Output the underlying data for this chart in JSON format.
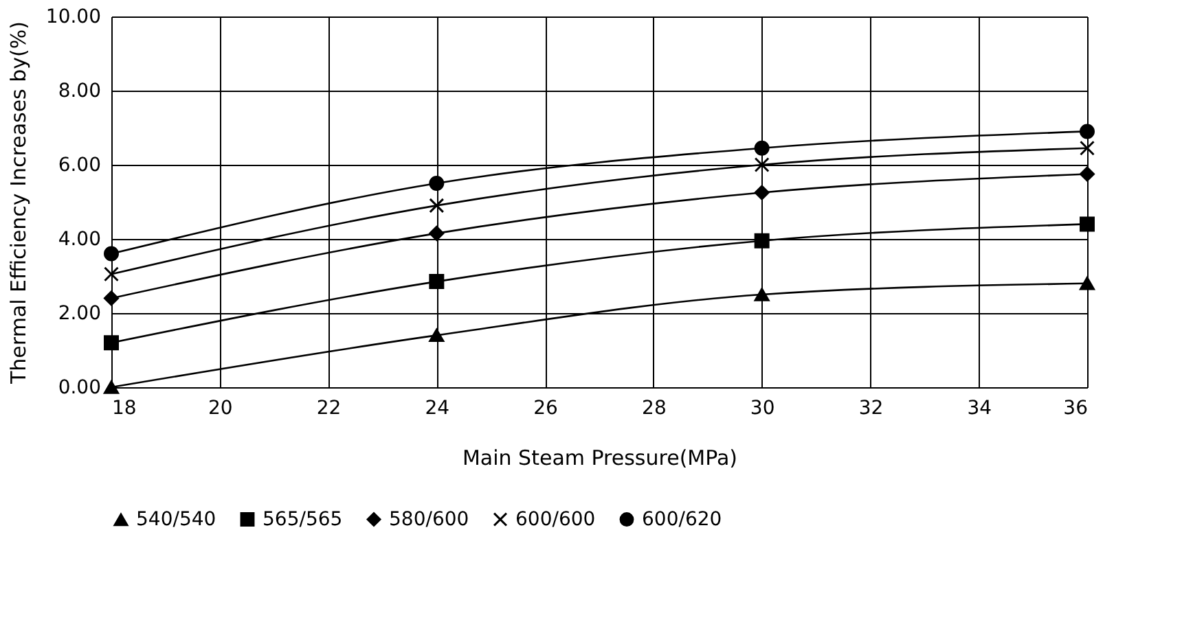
{
  "chart_data": {
    "type": "line",
    "xlabel": "Main Steam Pressure(MPa)",
    "ylabel": "Thermal Efficiency Increases by(%)",
    "x": [
      18,
      24,
      30,
      36
    ],
    "series": [
      {
        "name": "540/540",
        "color": "#000000",
        "marker": "triangle",
        "values": [
          0.0,
          1.4,
          2.5,
          2.8
        ]
      },
      {
        "name": "565/565",
        "color": "#000000",
        "marker": "square",
        "values": [
          1.2,
          2.85,
          3.95,
          4.4
        ]
      },
      {
        "name": "580/600",
        "color": "#000000",
        "marker": "diamond",
        "values": [
          2.4,
          4.15,
          5.25,
          5.75
        ]
      },
      {
        "name": "600/600",
        "color": "#000000",
        "marker": "cross",
        "values": [
          3.05,
          4.9,
          6.0,
          6.45
        ]
      },
      {
        "name": "600/620",
        "color": "#000000",
        "marker": "circle",
        "values": [
          3.6,
          5.5,
          6.45,
          6.9
        ]
      }
    ],
    "xlim": [
      18,
      36
    ],
    "xticks": [
      18,
      20,
      22,
      24,
      26,
      28,
      30,
      32,
      34,
      36
    ],
    "ylim": [
      0,
      10
    ],
    "yticks": [
      {
        "value": 0,
        "label": "0.00"
      },
      {
        "value": 2,
        "label": "2.00"
      },
      {
        "value": 4,
        "label": "4.00"
      },
      {
        "value": 6,
        "label": "6.00"
      },
      {
        "value": 8,
        "label": "8.00"
      },
      {
        "value": 10,
        "label": "10.00"
      }
    ],
    "grid": true,
    "legend": "bottom",
    "line_style": "solid"
  }
}
